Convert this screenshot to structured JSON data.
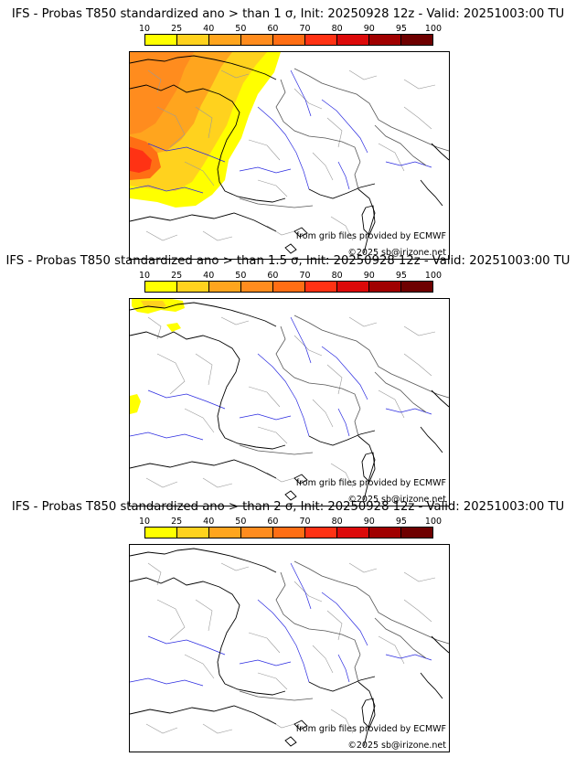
{
  "colorbar": {
    "ticks": [
      "10",
      "25",
      "40",
      "50",
      "60",
      "70",
      "80",
      "90",
      "95",
      "100"
    ],
    "colors": [
      "#ffff00",
      "#ffd21e",
      "#ffa51e",
      "#ff8c1e",
      "#ff6e14",
      "#ff3214",
      "#dc0a0a",
      "#a00000",
      "#6e0000"
    ]
  },
  "panels": [
    {
      "title": "IFS - Probas T850  standardized ano > than 1 σ, Init: 20250928 12z - Valid: 20251003:00 TU",
      "credit_source": "from grib files provided by ECMWF",
      "credit_copyright": "©2025 sb@irizone.net",
      "coverage": "large"
    },
    {
      "title": "IFS - Probas T850  standardized ano > than 1.5 σ, Init: 20250928 12z - Valid: 20251003:00 TU",
      "credit_source": "from grib files provided by ECMWF",
      "credit_copyright": "©2025 sb@irizone.net",
      "coverage": "small"
    },
    {
      "title": "IFS - Probas T850  standardized ano > than 2 σ, Init: 20250928 12z - Valid: 20251003:00 TU",
      "credit_source": "from grib files provided by ECMWF",
      "credit_copyright": "©2025 sb@irizone.net",
      "coverage": "none"
    }
  ]
}
